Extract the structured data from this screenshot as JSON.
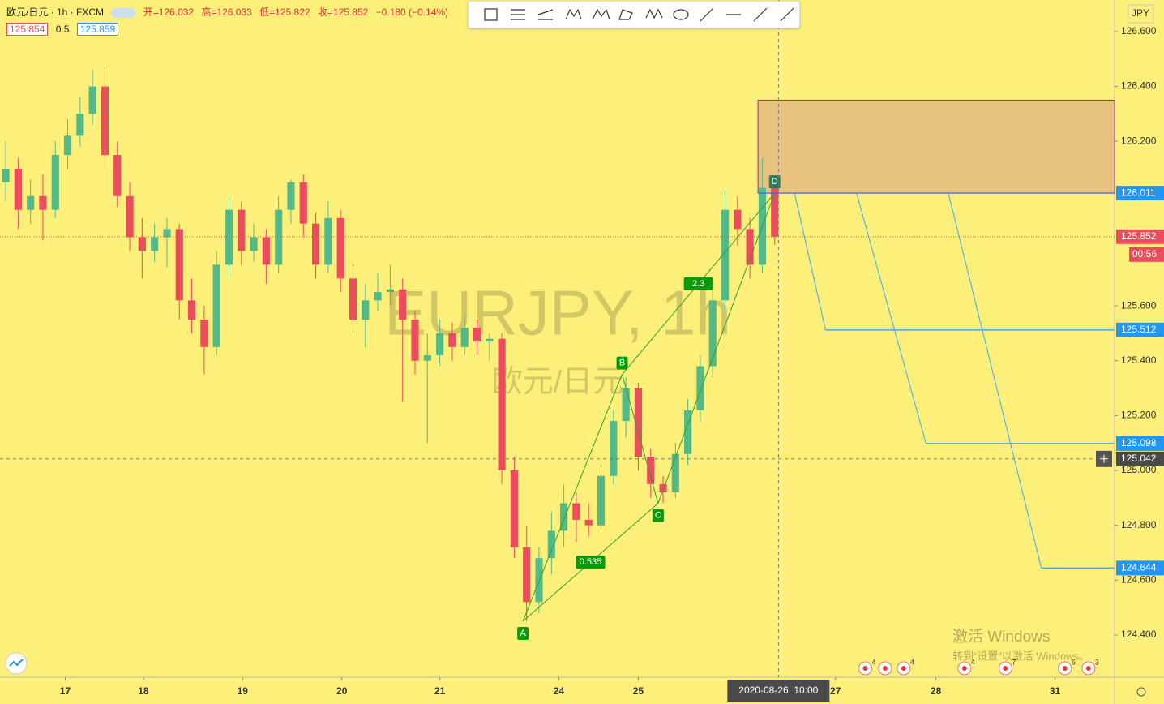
{
  "header": {
    "symbol": "欧元/日元 · 1h · FXCM",
    "open": "开=126.032",
    "high": "高=126.033",
    "low": "低=125.822",
    "close": "收=125.852",
    "change": "−0.180 (−0.14%)",
    "bid": "125.854",
    "spread": "0.5",
    "ask": "125.859"
  },
  "watermark": {
    "title": "EURJPY, 1h",
    "subtitle": "欧元/日元"
  },
  "windows_notice": {
    "title": "激活 Windows",
    "text": "转到“设置”以激活 Windows。"
  },
  "chart_data": {
    "type": "candlestick",
    "currency": "JPY",
    "up_color": "#53b987",
    "down_color": "#eb4d5c",
    "ylim": [
      124.246,
      126.715
    ],
    "yticks": [
      {
        "value": 124.4,
        "label": "124.400"
      },
      {
        "value": 124.6,
        "label": "124.600"
      },
      {
        "value": 124.8,
        "label": "124.800"
      },
      {
        "value": 125.0,
        "label": "125.000"
      },
      {
        "value": 125.2,
        "label": "125.200"
      },
      {
        "value": 125.4,
        "label": "125.400"
      },
      {
        "value": 125.6,
        "label": "125.600"
      },
      {
        "value": 126.2,
        "label": "126.200"
      },
      {
        "value": 126.4,
        "label": "126.400"
      },
      {
        "value": 126.6,
        "label": "126.600"
      }
    ],
    "xlim": [
      -0.46,
      89.4
    ],
    "xticks": [
      {
        "value": 4.8,
        "label": "17"
      },
      {
        "value": 11.1,
        "label": "18"
      },
      {
        "value": 19.1,
        "label": "19"
      },
      {
        "value": 27.1,
        "label": "20"
      },
      {
        "value": 35,
        "label": "21"
      },
      {
        "value": 44.6,
        "label": "24"
      },
      {
        "value": 51,
        "label": "25"
      },
      {
        "value": 66.9,
        "label": "27"
      },
      {
        "value": 75,
        "label": "28"
      },
      {
        "value": 84.6,
        "label": "31"
      }
    ],
    "crosshair": {
      "x": 62.3,
      "x_label": "2020-08-26  10:00",
      "y": 125.042
    },
    "last_price": 125.852,
    "countdown": "00:56",
    "candles": [
      [
        126.05,
        126.2,
        125.98,
        126.1
      ],
      [
        126.1,
        126.14,
        125.88,
        125.95
      ],
      [
        125.95,
        126.06,
        125.9,
        126.0
      ],
      [
        126.0,
        126.08,
        125.84,
        125.95
      ],
      [
        125.95,
        126.2,
        125.92,
        126.15
      ],
      [
        126.15,
        126.28,
        126.1,
        126.22
      ],
      [
        126.22,
        126.36,
        126.18,
        126.3
      ],
      [
        126.3,
        126.46,
        126.26,
        126.4
      ],
      [
        126.4,
        126.47,
        126.1,
        126.15
      ],
      [
        126.15,
        126.2,
        125.96,
        126.0
      ],
      [
        126.0,
        126.05,
        125.8,
        125.85
      ],
      [
        125.85,
        125.92,
        125.7,
        125.8
      ],
      [
        125.8,
        125.9,
        125.76,
        125.85
      ],
      [
        125.85,
        125.92,
        125.74,
        125.88
      ],
      [
        125.88,
        125.9,
        125.55,
        125.62
      ],
      [
        125.62,
        125.7,
        125.5,
        125.55
      ],
      [
        125.55,
        125.6,
        125.35,
        125.45
      ],
      [
        125.45,
        125.8,
        125.42,
        125.75
      ],
      [
        125.75,
        126.0,
        125.7,
        125.95
      ],
      [
        125.95,
        125.98,
        125.75,
        125.8
      ],
      [
        125.8,
        125.9,
        125.76,
        125.85
      ],
      [
        125.85,
        125.88,
        125.68,
        125.75
      ],
      [
        125.75,
        126.0,
        125.72,
        125.95
      ],
      [
        125.95,
        126.06,
        125.9,
        126.05
      ],
      [
        126.05,
        126.08,
        125.85,
        125.9
      ],
      [
        125.9,
        125.94,
        125.7,
        125.75
      ],
      [
        125.75,
        125.98,
        125.72,
        125.92
      ],
      [
        125.92,
        125.95,
        125.65,
        125.7
      ],
      [
        125.7,
        125.75,
        125.5,
        125.55
      ],
      [
        125.55,
        125.68,
        125.45,
        125.62
      ],
      [
        125.62,
        125.72,
        125.58,
        125.65
      ],
      [
        125.65,
        125.75,
        125.6,
        125.66
      ],
      [
        125.66,
        125.7,
        125.25,
        125.55
      ],
      [
        125.55,
        125.58,
        125.35,
        125.4
      ],
      [
        125.4,
        125.5,
        125.1,
        125.42
      ],
      [
        125.42,
        125.55,
        125.38,
        125.5
      ],
      [
        125.5,
        125.54,
        125.4,
        125.45
      ],
      [
        125.45,
        125.56,
        125.42,
        125.52
      ],
      [
        125.52,
        125.55,
        125.42,
        125.47
      ],
      [
        125.47,
        125.5,
        125.4,
        125.48
      ],
      [
        125.48,
        125.5,
        124.95,
        125.0
      ],
      [
        125.0,
        125.05,
        124.68,
        124.72
      ],
      [
        124.72,
        124.8,
        124.45,
        124.52
      ],
      [
        124.52,
        124.72,
        124.48,
        124.68
      ],
      [
        124.68,
        124.85,
        124.62,
        124.78
      ],
      [
        124.78,
        124.95,
        124.72,
        124.88
      ],
      [
        124.88,
        124.92,
        124.74,
        124.82
      ],
      [
        124.82,
        124.88,
        124.76,
        124.8
      ],
      [
        124.8,
        125.02,
        124.78,
        124.98
      ],
      [
        124.98,
        125.22,
        124.95,
        125.18
      ],
      [
        125.18,
        125.34,
        125.12,
        125.3
      ],
      [
        125.3,
        125.32,
        125.0,
        125.05
      ],
      [
        125.05,
        125.08,
        124.9,
        124.95
      ],
      [
        124.95,
        124.98,
        124.88,
        124.92
      ],
      [
        124.92,
        125.1,
        124.9,
        125.06
      ],
      [
        125.06,
        125.26,
        125.02,
        125.22
      ],
      [
        125.22,
        125.42,
        125.18,
        125.38
      ],
      [
        125.38,
        125.66,
        125.34,
        125.62
      ],
      [
        125.62,
        126.02,
        125.58,
        125.95
      ],
      [
        125.95,
        126.0,
        125.82,
        125.88
      ],
      [
        125.88,
        125.92,
        125.7,
        125.75
      ],
      [
        125.75,
        126.14,
        125.72,
        126.03
      ],
      [
        126.032,
        126.033,
        125.822,
        125.852
      ]
    ],
    "pattern": {
      "color": "#33a02c",
      "points": [
        {
          "label": "A",
          "x": 41.7,
          "y": 124.45
        },
        {
          "label": "B",
          "x": 49.7,
          "y": 125.35
        },
        {
          "label": "C",
          "x": 52.6,
          "y": 124.88
        },
        {
          "label": "D",
          "x": 62,
          "y": 126.011
        }
      ],
      "ratios": [
        0.535,
        2.3
      ]
    },
    "zone": {
      "x": 60.65,
      "top": 126.35,
      "bottom": 126.011,
      "color": "#e8c37f"
    },
    "targets": [
      {
        "start": 63.6,
        "end": 66.1,
        "value": 125.512
      },
      {
        "start": 68.6,
        "end": 74.2,
        "value": 125.098
      },
      {
        "start": 76,
        "end": 83.5,
        "value": 124.644
      }
    ],
    "events": [
      {
        "x": 69.3,
        "count": 4
      },
      {
        "x": 70.9
      },
      {
        "x": 72.4,
        "count": 4
      },
      {
        "x": 77.3,
        "count": 4
      },
      {
        "x": 80.6,
        "count": 7
      },
      {
        "x": 85.4,
        "count": 6
      },
      {
        "x": 87.3,
        "count": 3
      }
    ]
  }
}
